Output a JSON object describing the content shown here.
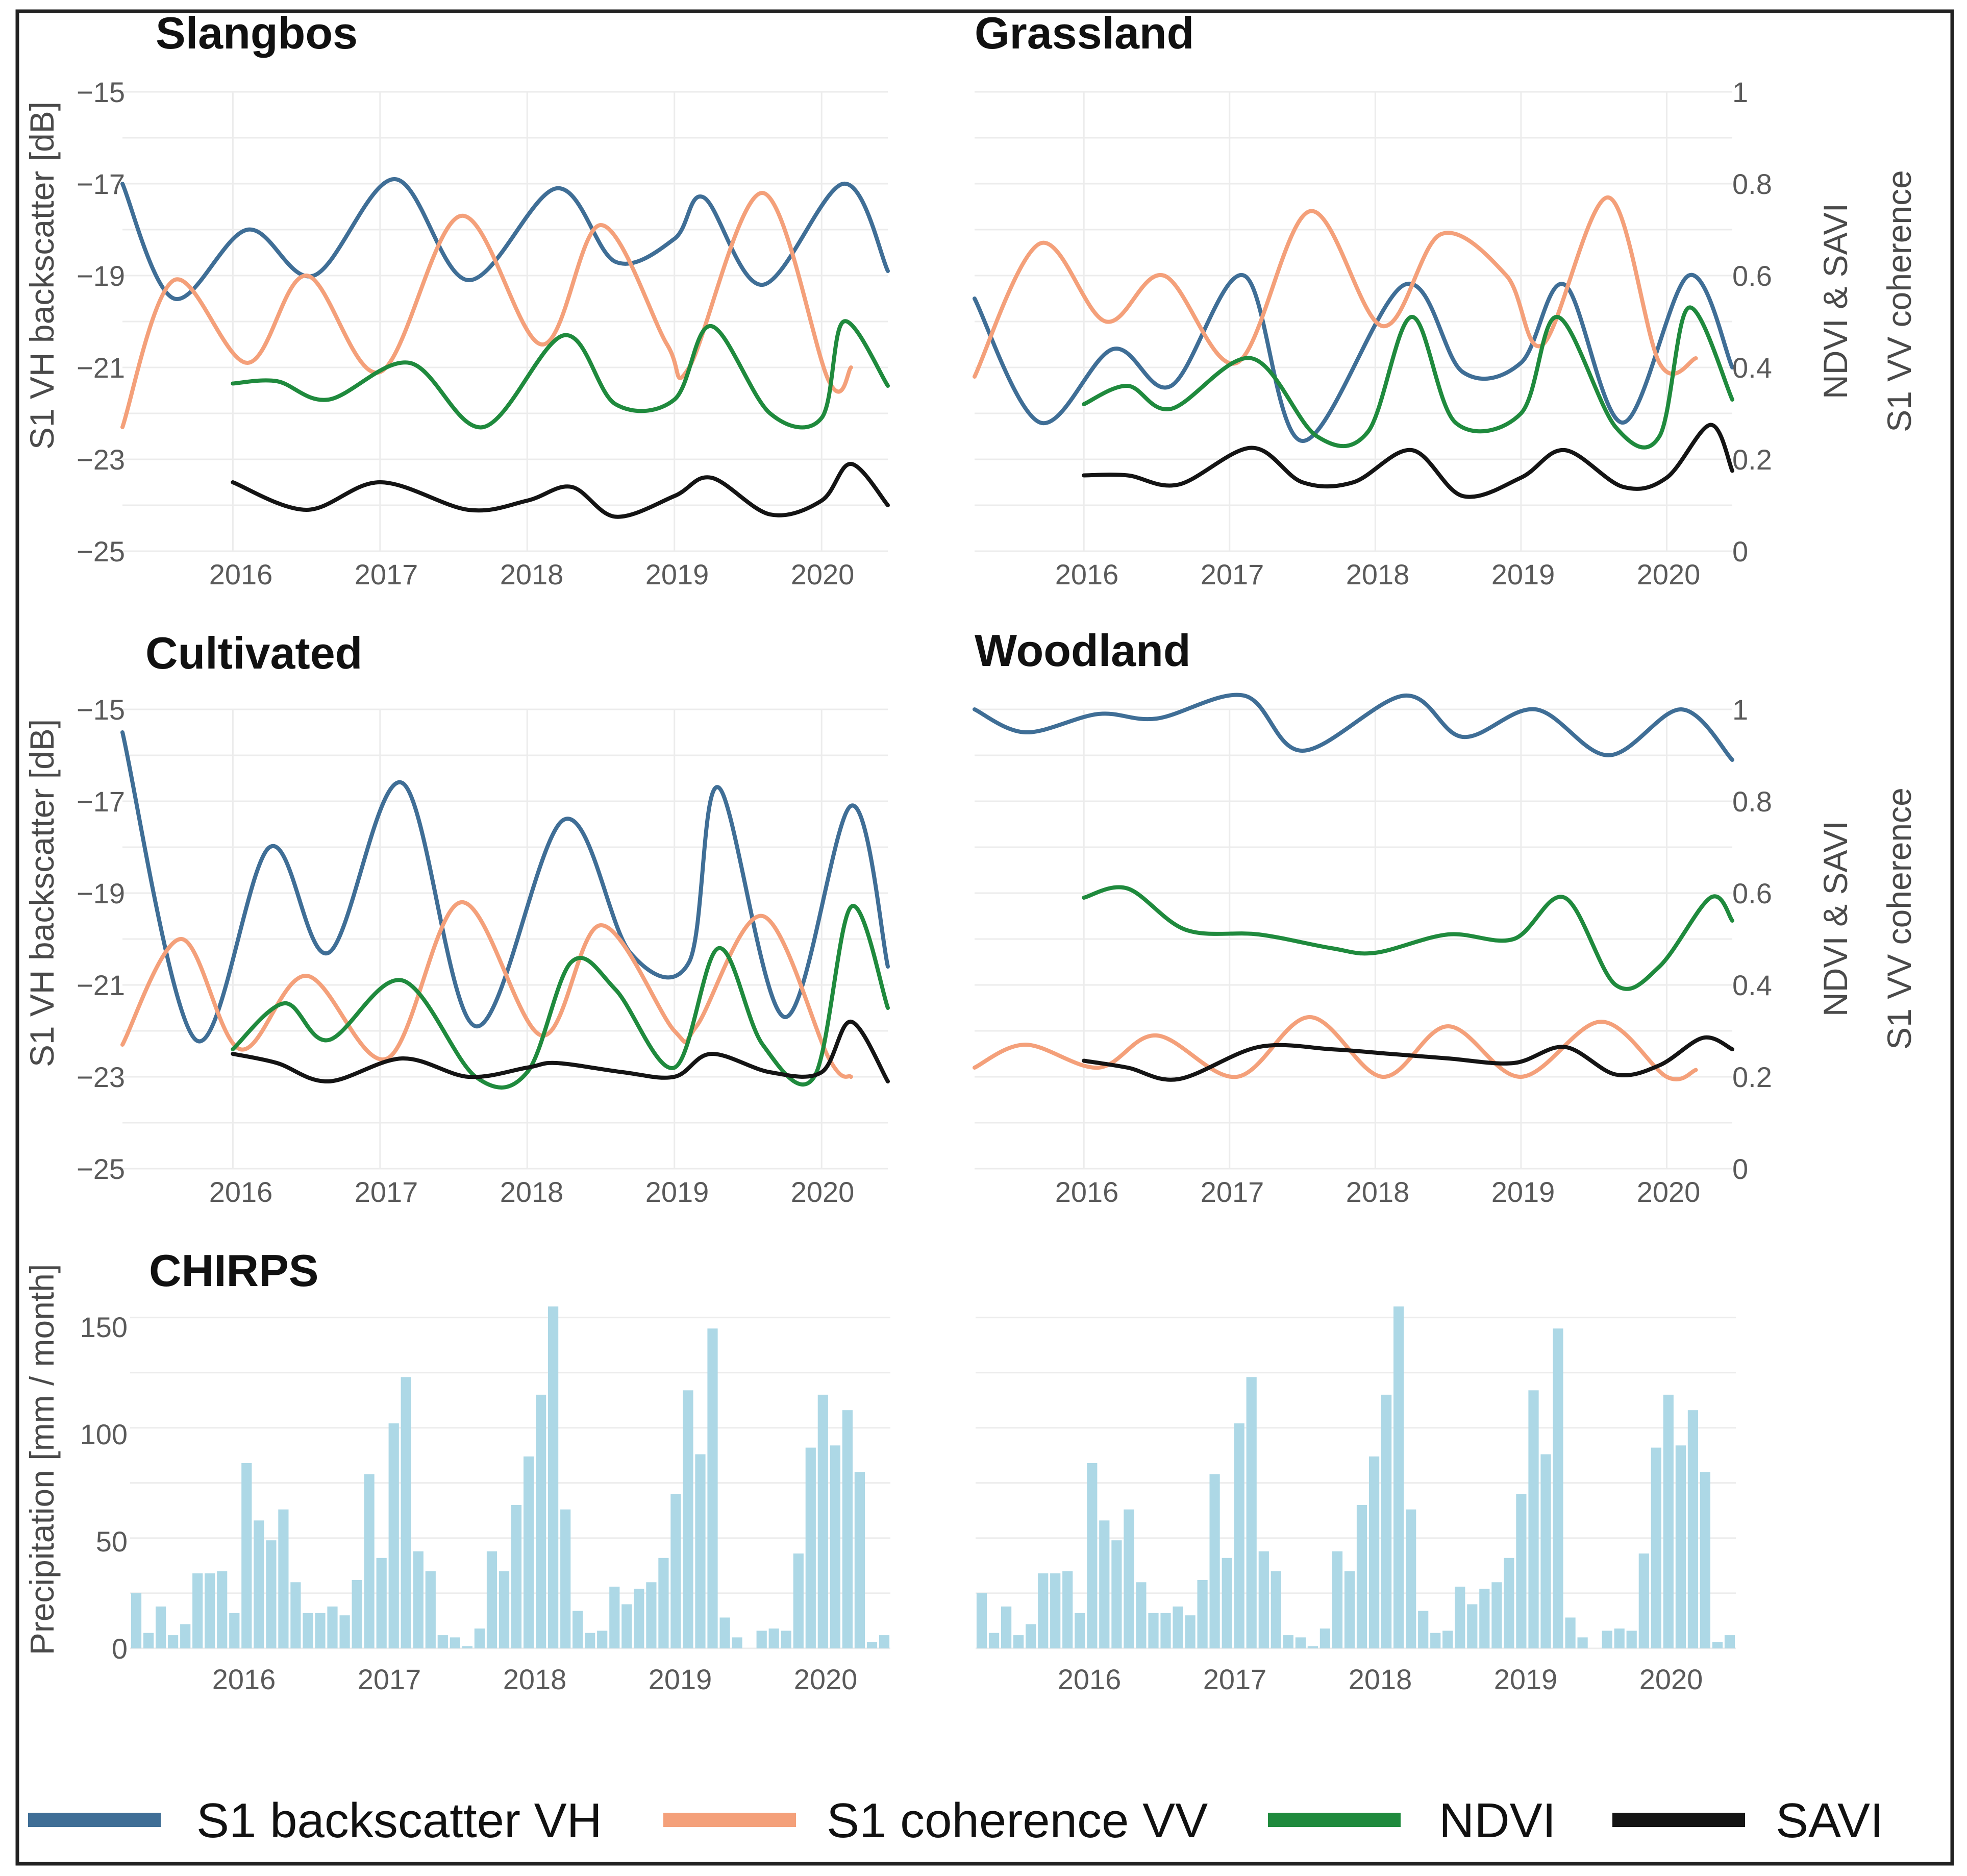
{
  "colors": {
    "backscatter": "#3f6e96",
    "coherence": "#f4a07a",
    "ndvi": "#1f8a3d",
    "savi": "#141414",
    "precip": "#add8e6"
  },
  "legend": [
    {
      "key": "backscatter",
      "label": "S1 backscatter VH"
    },
    {
      "key": "coherence",
      "label": "S1 coherence VV"
    },
    {
      "key": "ndvi",
      "label": "NDVI"
    },
    {
      "key": "savi",
      "label": "SAVI"
    }
  ],
  "chart_data": [
    {
      "type": "line",
      "title": "Slangbos",
      "ylabel": "S1 VH backscatter [dB]",
      "y_ticks": [
        "−15",
        "−17",
        "−19",
        "−21",
        "−23",
        "−25"
      ],
      "x_ticks": [
        "2016",
        "2017",
        "2018",
        "2019",
        "2020"
      ],
      "xlim": [
        2015.25,
        2020.45
      ],
      "ylim": [
        -25,
        -15
      ],
      "y2lim": [
        0,
        1
      ],
      "series": [
        {
          "name": "S1 backscatter VH",
          "key": "backscatter",
          "axis": "left",
          "x": [
            2015.25,
            2015.6,
            2016.1,
            2016.55,
            2017.1,
            2017.6,
            2018.2,
            2018.6,
            2019.0,
            2019.2,
            2019.6,
            2020.15,
            2020.45
          ],
          "y": [
            -17.0,
            -19.5,
            -18.0,
            -19.0,
            -16.9,
            -19.1,
            -17.1,
            -18.7,
            -18.2,
            -17.3,
            -19.2,
            -17.0,
            -18.9
          ]
        },
        {
          "name": "S1 coherence VV",
          "key": "coherence",
          "axis": "right",
          "x": [
            2015.25,
            2015.6,
            2016.1,
            2016.5,
            2017.0,
            2017.55,
            2018.1,
            2018.5,
            2018.95,
            2019.1,
            2019.6,
            2020.05,
            2020.2
          ],
          "y": [
            0.27,
            0.59,
            0.41,
            0.6,
            0.39,
            0.73,
            0.45,
            0.71,
            0.45,
            0.4,
            0.78,
            0.37,
            0.4
          ]
        },
        {
          "name": "NDVI",
          "key": "ndvi",
          "axis": "right",
          "x": [
            2016.0,
            2016.3,
            2016.65,
            2017.2,
            2017.7,
            2018.25,
            2018.6,
            2019.0,
            2019.25,
            2019.65,
            2020.0,
            2020.15,
            2020.45
          ],
          "y": [
            0.365,
            0.37,
            0.33,
            0.41,
            0.27,
            0.47,
            0.32,
            0.33,
            0.49,
            0.3,
            0.29,
            0.5,
            0.36
          ]
        },
        {
          "name": "SAVI",
          "key": "savi",
          "axis": "right",
          "x": [
            2016.0,
            2016.5,
            2017.0,
            2017.6,
            2018.0,
            2018.3,
            2018.6,
            2019.0,
            2019.25,
            2019.65,
            2020.0,
            2020.2,
            2020.45
          ],
          "y": [
            0.15,
            0.09,
            0.15,
            0.09,
            0.11,
            0.14,
            0.075,
            0.12,
            0.16,
            0.08,
            0.11,
            0.19,
            0.1
          ]
        }
      ]
    },
    {
      "type": "line",
      "title": "Grassland",
      "y2label": "NDVI & SAVI",
      "y3label": "S1 VV coherence",
      "y_ticks": [
        "1",
        "0.8",
        "0.6",
        "0.4",
        "0.2",
        "0"
      ],
      "x_ticks": [
        "2016",
        "2017",
        "2018",
        "2019",
        "2020"
      ],
      "xlim": [
        2015.25,
        2020.45
      ],
      "ylim": [
        -25,
        -15
      ],
      "y2lim": [
        0,
        1
      ],
      "series": [
        {
          "name": "S1 backscatter VH",
          "key": "backscatter",
          "axis": "left",
          "x": [
            2015.25,
            2015.7,
            2016.2,
            2016.6,
            2017.1,
            2017.5,
            2018.2,
            2018.6,
            2019.0,
            2019.3,
            2019.7,
            2020.15,
            2020.45
          ],
          "y": [
            -19.5,
            -22.2,
            -20.6,
            -21.4,
            -19.0,
            -22.6,
            -19.2,
            -21.1,
            -20.9,
            -19.2,
            -22.2,
            -19.0,
            -21.0
          ]
        },
        {
          "name": "S1 coherence VV",
          "key": "coherence",
          "axis": "right",
          "x": [
            2015.25,
            2015.7,
            2016.15,
            2016.55,
            2017.05,
            2017.55,
            2018.05,
            2018.45,
            2018.9,
            2019.15,
            2019.6,
            2019.95,
            2020.2
          ],
          "y": [
            0.38,
            0.67,
            0.5,
            0.6,
            0.41,
            0.74,
            0.49,
            0.69,
            0.6,
            0.45,
            0.77,
            0.41,
            0.42
          ]
        },
        {
          "name": "NDVI",
          "key": "ndvi",
          "axis": "right",
          "x": [
            2016.0,
            2016.3,
            2016.6,
            2017.15,
            2017.6,
            2017.95,
            2018.25,
            2018.55,
            2019.0,
            2019.25,
            2019.65,
            2019.95,
            2020.15,
            2020.45
          ],
          "y": [
            0.32,
            0.36,
            0.31,
            0.42,
            0.25,
            0.26,
            0.51,
            0.28,
            0.3,
            0.51,
            0.27,
            0.25,
            0.53,
            0.33
          ]
        },
        {
          "name": "SAVI",
          "key": "savi",
          "axis": "right",
          "x": [
            2016.0,
            2016.3,
            2016.65,
            2017.15,
            2017.5,
            2017.85,
            2018.25,
            2018.6,
            2019.0,
            2019.3,
            2019.7,
            2020.0,
            2020.3,
            2020.45
          ],
          "y": [
            0.165,
            0.165,
            0.145,
            0.225,
            0.15,
            0.15,
            0.22,
            0.12,
            0.16,
            0.22,
            0.14,
            0.16,
            0.275,
            0.175
          ]
        }
      ]
    },
    {
      "type": "line",
      "title": "Cultivated",
      "ylabel": "S1 VH backscatter [dB]",
      "y_ticks": [
        "−15",
        "−17",
        "−19",
        "−21",
        "−23",
        "−25"
      ],
      "x_ticks": [
        "2016",
        "2017",
        "2018",
        "2019",
        "2020"
      ],
      "xlim": [
        2015.25,
        2020.45
      ],
      "ylim": [
        -25,
        -15
      ],
      "y2lim": [
        0,
        1
      ],
      "series": [
        {
          "name": "S1 backscatter VH",
          "key": "backscatter",
          "axis": "left",
          "x": [
            2015.25,
            2015.75,
            2016.25,
            2016.65,
            2017.15,
            2017.65,
            2018.25,
            2018.7,
            2019.1,
            2019.3,
            2019.75,
            2020.2,
            2020.45
          ],
          "y": [
            -15.5,
            -22.2,
            -18.0,
            -20.3,
            -16.6,
            -21.9,
            -17.4,
            -20.3,
            -20.5,
            -16.7,
            -21.7,
            -17.1,
            -20.6
          ]
        },
        {
          "name": "S1 coherence VV",
          "key": "coherence",
          "axis": "right",
          "x": [
            2015.25,
            2015.65,
            2016.05,
            2016.5,
            2017.05,
            2017.55,
            2018.1,
            2018.5,
            2019.0,
            2019.15,
            2019.6,
            2020.05,
            2020.2
          ],
          "y": [
            0.27,
            0.5,
            0.26,
            0.42,
            0.24,
            0.58,
            0.29,
            0.53,
            0.3,
            0.31,
            0.55,
            0.24,
            0.2
          ]
        },
        {
          "name": "NDVI",
          "key": "ndvi",
          "axis": "right",
          "x": [
            2016.0,
            2016.35,
            2016.65,
            2017.15,
            2017.65,
            2018.0,
            2018.3,
            2018.6,
            2019.0,
            2019.3,
            2019.6,
            2019.95,
            2020.2,
            2020.45
          ],
          "y": [
            0.26,
            0.36,
            0.28,
            0.41,
            0.2,
            0.21,
            0.45,
            0.39,
            0.22,
            0.48,
            0.27,
            0.2,
            0.57,
            0.35
          ]
        },
        {
          "name": "SAVI",
          "key": "savi",
          "axis": "right",
          "x": [
            2016.0,
            2016.3,
            2016.65,
            2017.15,
            2017.6,
            2018.0,
            2018.2,
            2018.65,
            2019.0,
            2019.25,
            2019.65,
            2020.0,
            2020.2,
            2020.45
          ],
          "y": [
            0.25,
            0.23,
            0.19,
            0.24,
            0.2,
            0.22,
            0.23,
            0.21,
            0.2,
            0.25,
            0.21,
            0.21,
            0.32,
            0.19
          ]
        }
      ]
    },
    {
      "type": "line",
      "title": "Woodland",
      "y2label": "NDVI & SAVI",
      "y3label": "S1 VV coherence",
      "y_ticks": [
        "1",
        "0.8",
        "0.6",
        "0.4",
        "0.2",
        "0"
      ],
      "x_ticks": [
        "2016",
        "2017",
        "2018",
        "2019",
        "2020"
      ],
      "xlim": [
        2015.25,
        2020.45
      ],
      "ylim": [
        -25,
        -15
      ],
      "y2lim": [
        0,
        1
      ],
      "series": [
        {
          "name": "S1 backscatter VH",
          "key": "backscatter",
          "axis": "left",
          "x": [
            2015.25,
            2015.6,
            2016.1,
            2016.5,
            2017.1,
            2017.5,
            2018.2,
            2018.6,
            2019.1,
            2019.6,
            2020.1,
            2020.45
          ],
          "y": [
            -15.0,
            -15.5,
            -15.1,
            -15.2,
            -14.7,
            -15.9,
            -14.7,
            -15.6,
            -15.0,
            -16.0,
            -15.0,
            -16.1
          ]
        },
        {
          "name": "S1 coherence VV",
          "key": "coherence",
          "axis": "right",
          "x": [
            2015.25,
            2015.6,
            2016.1,
            2016.5,
            2017.05,
            2017.55,
            2018.05,
            2018.5,
            2019.0,
            2019.55,
            2020.0,
            2020.2
          ],
          "y": [
            0.22,
            0.27,
            0.22,
            0.29,
            0.2,
            0.33,
            0.2,
            0.31,
            0.2,
            0.32,
            0.2,
            0.215
          ]
        },
        {
          "name": "NDVI",
          "key": "ndvi",
          "axis": "right",
          "x": [
            2016.0,
            2016.3,
            2016.7,
            2017.2,
            2017.7,
            2018.0,
            2018.5,
            2018.95,
            2019.3,
            2019.65,
            2019.95,
            2020.3,
            2020.45
          ],
          "y": [
            0.59,
            0.61,
            0.52,
            0.51,
            0.48,
            0.47,
            0.51,
            0.5,
            0.59,
            0.4,
            0.44,
            0.59,
            0.54
          ]
        },
        {
          "name": "SAVI",
          "key": "savi",
          "axis": "right",
          "x": [
            2016.0,
            2016.3,
            2016.65,
            2017.2,
            2017.7,
            2018.1,
            2018.5,
            2018.95,
            2019.3,
            2019.65,
            2019.95,
            2020.25,
            2020.45
          ],
          "y": [
            0.235,
            0.22,
            0.195,
            0.265,
            0.26,
            0.25,
            0.24,
            0.23,
            0.265,
            0.205,
            0.225,
            0.285,
            0.26
          ]
        }
      ]
    },
    {
      "type": "bar",
      "title": "CHIRPS",
      "ylabel": "Precipitation [mm / month]",
      "y_ticks": [
        "150",
        "100",
        "50",
        "0"
      ],
      "x_ticks": [
        "2016",
        "2017",
        "2018",
        "2019",
        "2020"
      ],
      "ylim": [
        0,
        155
      ],
      "categories_start": "2015-03",
      "values": [
        25,
        7,
        19,
        6,
        11,
        34,
        34,
        35,
        16,
        84,
        58,
        49,
        63,
        30,
        16,
        16,
        19,
        15,
        31,
        79,
        41,
        102,
        123,
        44,
        35,
        6,
        5,
        1,
        9,
        44,
        35,
        65,
        87,
        115,
        155,
        63,
        17,
        7,
        8,
        28,
        20,
        27,
        30,
        41,
        70,
        117,
        88,
        145,
        14,
        5,
        0,
        8,
        9,
        8,
        43,
        91,
        115,
        92,
        108,
        80,
        3,
        6
      ]
    },
    {
      "type": "bar",
      "title": "",
      "x_ticks": [
        "2016",
        "2017",
        "2018",
        "2019",
        "2020"
      ],
      "ylim": [
        0,
        155
      ],
      "categories_start": "2015-03",
      "values": [
        25,
        7,
        19,
        6,
        11,
        34,
        34,
        35,
        16,
        84,
        58,
        49,
        63,
        30,
        16,
        16,
        19,
        15,
        31,
        79,
        41,
        102,
        123,
        44,
        35,
        6,
        5,
        1,
        9,
        44,
        35,
        65,
        87,
        115,
        155,
        63,
        17,
        7,
        8,
        28,
        20,
        27,
        30,
        41,
        70,
        117,
        88,
        145,
        14,
        5,
        0,
        8,
        9,
        8,
        43,
        91,
        115,
        92,
        108,
        80,
        3,
        6
      ]
    }
  ]
}
